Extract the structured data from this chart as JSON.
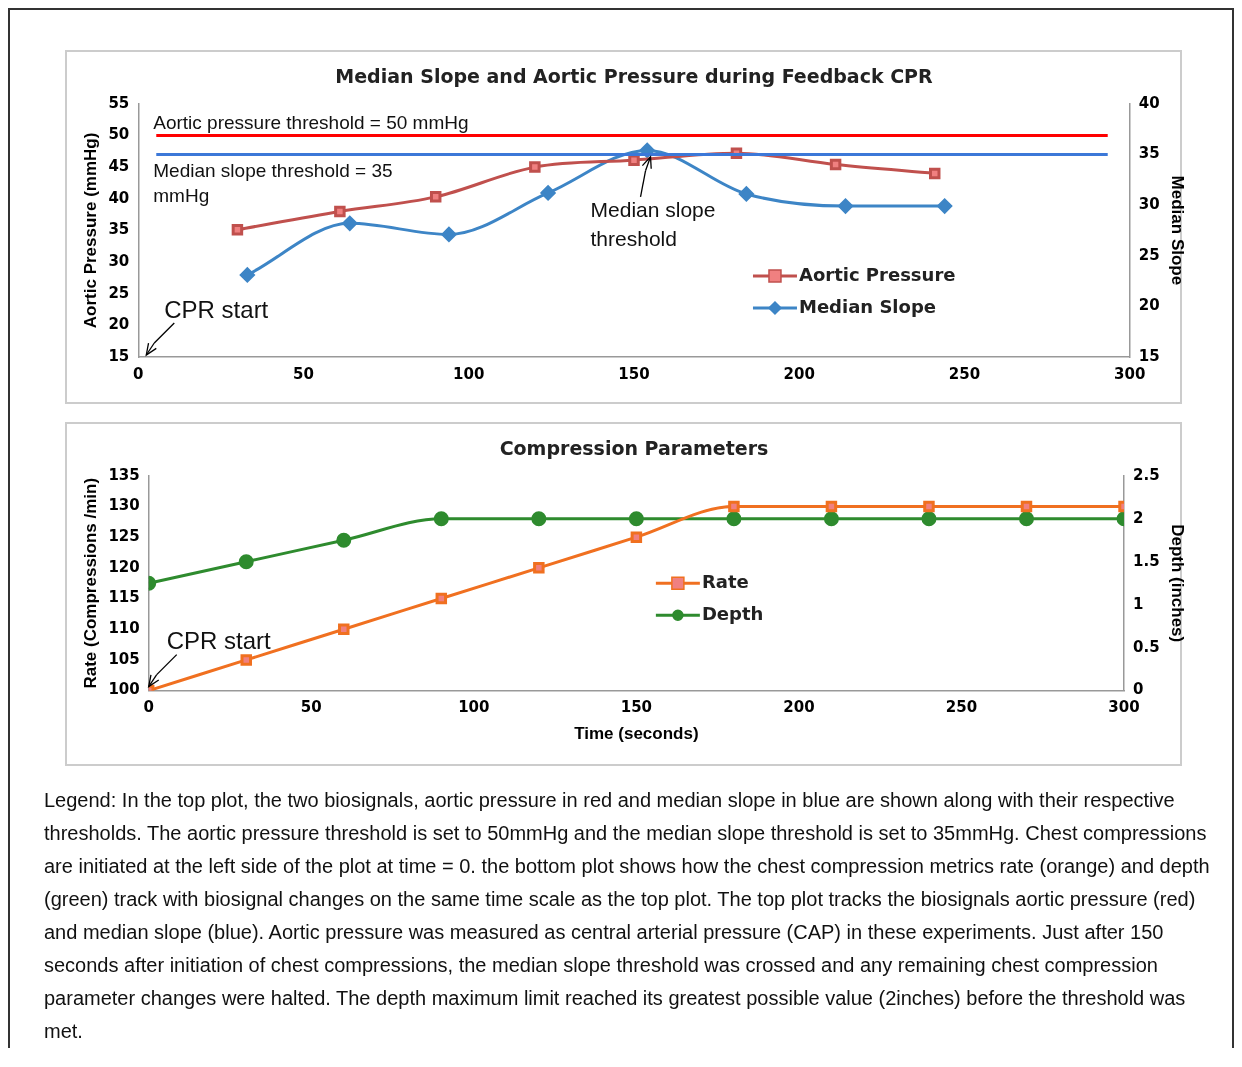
{
  "chart_data": [
    {
      "type": "line",
      "title": "Median Slope and Aortic Pressure during Feedback CPR",
      "ylabel": "Aortic Pressure (mmHg)",
      "y2label": "Median Slope",
      "xlim": [
        0,
        300
      ],
      "xticks": [
        0,
        50,
        100,
        150,
        200,
        250,
        300
      ],
      "ylim": [
        15,
        55
      ],
      "yticks": [
        15,
        20,
        25,
        30,
        35,
        40,
        45,
        50,
        55
      ],
      "y2lim": [
        15,
        40
      ],
      "y2ticks": [
        15,
        20,
        25,
        30,
        35,
        40
      ],
      "legend": "center right",
      "grid": false,
      "series": [
        {
          "name": "Aortic Pressure",
          "color": "#c0504d",
          "marker": "square",
          "x": [
            30,
            61,
            90,
            120,
            150,
            181,
            211,
            241
          ],
          "values": [
            35.1,
            38,
            40.3,
            45,
            46.1,
            47.2,
            45.4,
            44
          ]
        },
        {
          "name": "Median Slope",
          "color": "#3d85c6",
          "marker": "diamond",
          "axis": "y2",
          "x": [
            33,
            64,
            94,
            124,
            154,
            184,
            214,
            244
          ],
          "values": [
            23.1,
            28.2,
            27.1,
            31.2,
            35.4,
            31.1,
            29.9,
            29.9
          ]
        }
      ],
      "ref_lines": [
        {
          "axis": "y",
          "value": 50,
          "label": "Aortic pressure threshold = 50 mmHg",
          "color": "#ff0000"
        },
        {
          "axis": "y2",
          "value": 35,
          "label": "Median slope threshold = 35 mmHg",
          "color": "#3c78d8"
        }
      ],
      "annotations": [
        "CPR start",
        {
          "text": "Median slope threshold",
          "x": 155,
          "y": 46
        }
      ]
    },
    {
      "type": "line",
      "title": "Compression Parameters",
      "xlabel": "Time (seconds)",
      "ylabel": "Rate (Compressions /min)",
      "y2label": "Depth (inches)",
      "xlim": [
        0,
        300
      ],
      "xticks": [
        0,
        50,
        100,
        150,
        200,
        250,
        300
      ],
      "ylim": [
        100,
        135
      ],
      "yticks": [
        100,
        105,
        110,
        115,
        120,
        125,
        130,
        135
      ],
      "y2lim": [
        0,
        2.5
      ],
      "y2ticks": [
        0,
        0.5,
        1,
        1.5,
        2,
        2.5
      ],
      "legend": "center",
      "grid": false,
      "x": [
        0,
        30,
        60,
        90,
        120,
        150,
        180,
        210,
        240,
        270,
        300
      ],
      "series": [
        {
          "name": "Rate",
          "color": "#f07020",
          "marker": "square",
          "values": [
            100,
            105,
            110,
            115,
            120,
            125,
            130,
            130,
            130,
            130,
            130
          ]
        },
        {
          "name": "Depth",
          "color": "#2e8b2e",
          "marker": "circle",
          "axis": "y2",
          "values": [
            1.25,
            1.5,
            1.75,
            2,
            2,
            2,
            2,
            2,
            2,
            2,
            2
          ]
        }
      ],
      "annotations": [
        {
          "text": "CPR start",
          "x": 0,
          "y": 100
        },
        "Legend: In the top plot, the two biosignals, aortic pressure in red and median slope in blue are shown along with their respective thresholds.  The aortic pressure threshold is set to 50mmHg and the median slope threshold is set to 35mmHg. Chest compressions are initiated at the left side of the plot at time = 0.  the bottom plot shows how the chest compression metrics rate (orange) and depth (green) track with biosignal changes on the same time scale as the top plot.  The top plot tracks the biosignals aortic pressure (red) and median slope (blue).  Aortic pressure was measured as central arterial pressure (CAP) in these experiments.  Just after 150 seconds after initiation of chest compressions, the median slope threshold was crossed and any remaining chest compression parameter changes were halted.  The depth maximum limit reached its greatest possible value (2inches) before the threshold was met."
      ]
    }
  ]
}
